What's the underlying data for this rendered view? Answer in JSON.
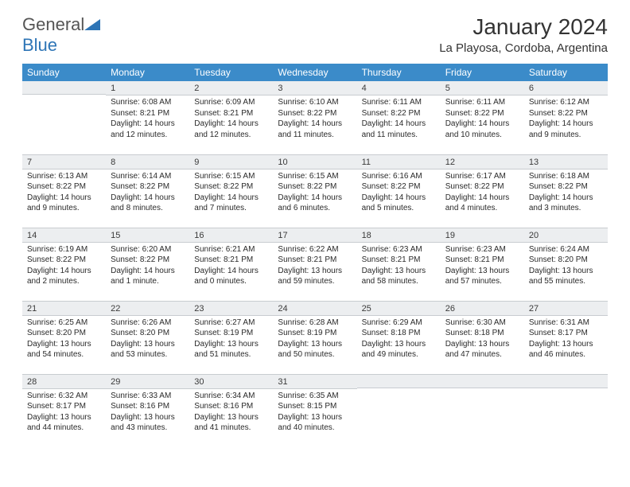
{
  "brand": {
    "part1": "General",
    "part2": "Blue"
  },
  "title": "January 2024",
  "location": "La Playosa, Cordoba, Argentina",
  "colors": {
    "header_bg": "#3b8bc9",
    "header_text": "#ffffff",
    "daybar_bg": "#eceef0",
    "rule": "#c8ccd0",
    "logo_blue": "#2e75b6",
    "text": "#2a2a2a"
  },
  "day_headers": [
    "Sunday",
    "Monday",
    "Tuesday",
    "Wednesday",
    "Thursday",
    "Friday",
    "Saturday"
  ],
  "weeks": [
    [
      {
        "n": "",
        "sr": "",
        "ss": "",
        "dl1": "",
        "dl2": ""
      },
      {
        "n": "1",
        "sr": "Sunrise: 6:08 AM",
        "ss": "Sunset: 8:21 PM",
        "dl1": "Daylight: 14 hours",
        "dl2": "and 12 minutes."
      },
      {
        "n": "2",
        "sr": "Sunrise: 6:09 AM",
        "ss": "Sunset: 8:21 PM",
        "dl1": "Daylight: 14 hours",
        "dl2": "and 12 minutes."
      },
      {
        "n": "3",
        "sr": "Sunrise: 6:10 AM",
        "ss": "Sunset: 8:22 PM",
        "dl1": "Daylight: 14 hours",
        "dl2": "and 11 minutes."
      },
      {
        "n": "4",
        "sr": "Sunrise: 6:11 AM",
        "ss": "Sunset: 8:22 PM",
        "dl1": "Daylight: 14 hours",
        "dl2": "and 11 minutes."
      },
      {
        "n": "5",
        "sr": "Sunrise: 6:11 AM",
        "ss": "Sunset: 8:22 PM",
        "dl1": "Daylight: 14 hours",
        "dl2": "and 10 minutes."
      },
      {
        "n": "6",
        "sr": "Sunrise: 6:12 AM",
        "ss": "Sunset: 8:22 PM",
        "dl1": "Daylight: 14 hours",
        "dl2": "and 9 minutes."
      }
    ],
    [
      {
        "n": "7",
        "sr": "Sunrise: 6:13 AM",
        "ss": "Sunset: 8:22 PM",
        "dl1": "Daylight: 14 hours",
        "dl2": "and 9 minutes."
      },
      {
        "n": "8",
        "sr": "Sunrise: 6:14 AM",
        "ss": "Sunset: 8:22 PM",
        "dl1": "Daylight: 14 hours",
        "dl2": "and 8 minutes."
      },
      {
        "n": "9",
        "sr": "Sunrise: 6:15 AM",
        "ss": "Sunset: 8:22 PM",
        "dl1": "Daylight: 14 hours",
        "dl2": "and 7 minutes."
      },
      {
        "n": "10",
        "sr": "Sunrise: 6:15 AM",
        "ss": "Sunset: 8:22 PM",
        "dl1": "Daylight: 14 hours",
        "dl2": "and 6 minutes."
      },
      {
        "n": "11",
        "sr": "Sunrise: 6:16 AM",
        "ss": "Sunset: 8:22 PM",
        "dl1": "Daylight: 14 hours",
        "dl2": "and 5 minutes."
      },
      {
        "n": "12",
        "sr": "Sunrise: 6:17 AM",
        "ss": "Sunset: 8:22 PM",
        "dl1": "Daylight: 14 hours",
        "dl2": "and 4 minutes."
      },
      {
        "n": "13",
        "sr": "Sunrise: 6:18 AM",
        "ss": "Sunset: 8:22 PM",
        "dl1": "Daylight: 14 hours",
        "dl2": "and 3 minutes."
      }
    ],
    [
      {
        "n": "14",
        "sr": "Sunrise: 6:19 AM",
        "ss": "Sunset: 8:22 PM",
        "dl1": "Daylight: 14 hours",
        "dl2": "and 2 minutes."
      },
      {
        "n": "15",
        "sr": "Sunrise: 6:20 AM",
        "ss": "Sunset: 8:22 PM",
        "dl1": "Daylight: 14 hours",
        "dl2": "and 1 minute."
      },
      {
        "n": "16",
        "sr": "Sunrise: 6:21 AM",
        "ss": "Sunset: 8:21 PM",
        "dl1": "Daylight: 14 hours",
        "dl2": "and 0 minutes."
      },
      {
        "n": "17",
        "sr": "Sunrise: 6:22 AM",
        "ss": "Sunset: 8:21 PM",
        "dl1": "Daylight: 13 hours",
        "dl2": "and 59 minutes."
      },
      {
        "n": "18",
        "sr": "Sunrise: 6:23 AM",
        "ss": "Sunset: 8:21 PM",
        "dl1": "Daylight: 13 hours",
        "dl2": "and 58 minutes."
      },
      {
        "n": "19",
        "sr": "Sunrise: 6:23 AM",
        "ss": "Sunset: 8:21 PM",
        "dl1": "Daylight: 13 hours",
        "dl2": "and 57 minutes."
      },
      {
        "n": "20",
        "sr": "Sunrise: 6:24 AM",
        "ss": "Sunset: 8:20 PM",
        "dl1": "Daylight: 13 hours",
        "dl2": "and 55 minutes."
      }
    ],
    [
      {
        "n": "21",
        "sr": "Sunrise: 6:25 AM",
        "ss": "Sunset: 8:20 PM",
        "dl1": "Daylight: 13 hours",
        "dl2": "and 54 minutes."
      },
      {
        "n": "22",
        "sr": "Sunrise: 6:26 AM",
        "ss": "Sunset: 8:20 PM",
        "dl1": "Daylight: 13 hours",
        "dl2": "and 53 minutes."
      },
      {
        "n": "23",
        "sr": "Sunrise: 6:27 AM",
        "ss": "Sunset: 8:19 PM",
        "dl1": "Daylight: 13 hours",
        "dl2": "and 51 minutes."
      },
      {
        "n": "24",
        "sr": "Sunrise: 6:28 AM",
        "ss": "Sunset: 8:19 PM",
        "dl1": "Daylight: 13 hours",
        "dl2": "and 50 minutes."
      },
      {
        "n": "25",
        "sr": "Sunrise: 6:29 AM",
        "ss": "Sunset: 8:18 PM",
        "dl1": "Daylight: 13 hours",
        "dl2": "and 49 minutes."
      },
      {
        "n": "26",
        "sr": "Sunrise: 6:30 AM",
        "ss": "Sunset: 8:18 PM",
        "dl1": "Daylight: 13 hours",
        "dl2": "and 47 minutes."
      },
      {
        "n": "27",
        "sr": "Sunrise: 6:31 AM",
        "ss": "Sunset: 8:17 PM",
        "dl1": "Daylight: 13 hours",
        "dl2": "and 46 minutes."
      }
    ],
    [
      {
        "n": "28",
        "sr": "Sunrise: 6:32 AM",
        "ss": "Sunset: 8:17 PM",
        "dl1": "Daylight: 13 hours",
        "dl2": "and 44 minutes."
      },
      {
        "n": "29",
        "sr": "Sunrise: 6:33 AM",
        "ss": "Sunset: 8:16 PM",
        "dl1": "Daylight: 13 hours",
        "dl2": "and 43 minutes."
      },
      {
        "n": "30",
        "sr": "Sunrise: 6:34 AM",
        "ss": "Sunset: 8:16 PM",
        "dl1": "Daylight: 13 hours",
        "dl2": "and 41 minutes."
      },
      {
        "n": "31",
        "sr": "Sunrise: 6:35 AM",
        "ss": "Sunset: 8:15 PM",
        "dl1": "Daylight: 13 hours",
        "dl2": "and 40 minutes."
      },
      {
        "n": "",
        "sr": "",
        "ss": "",
        "dl1": "",
        "dl2": ""
      },
      {
        "n": "",
        "sr": "",
        "ss": "",
        "dl1": "",
        "dl2": ""
      },
      {
        "n": "",
        "sr": "",
        "ss": "",
        "dl1": "",
        "dl2": ""
      }
    ]
  ]
}
